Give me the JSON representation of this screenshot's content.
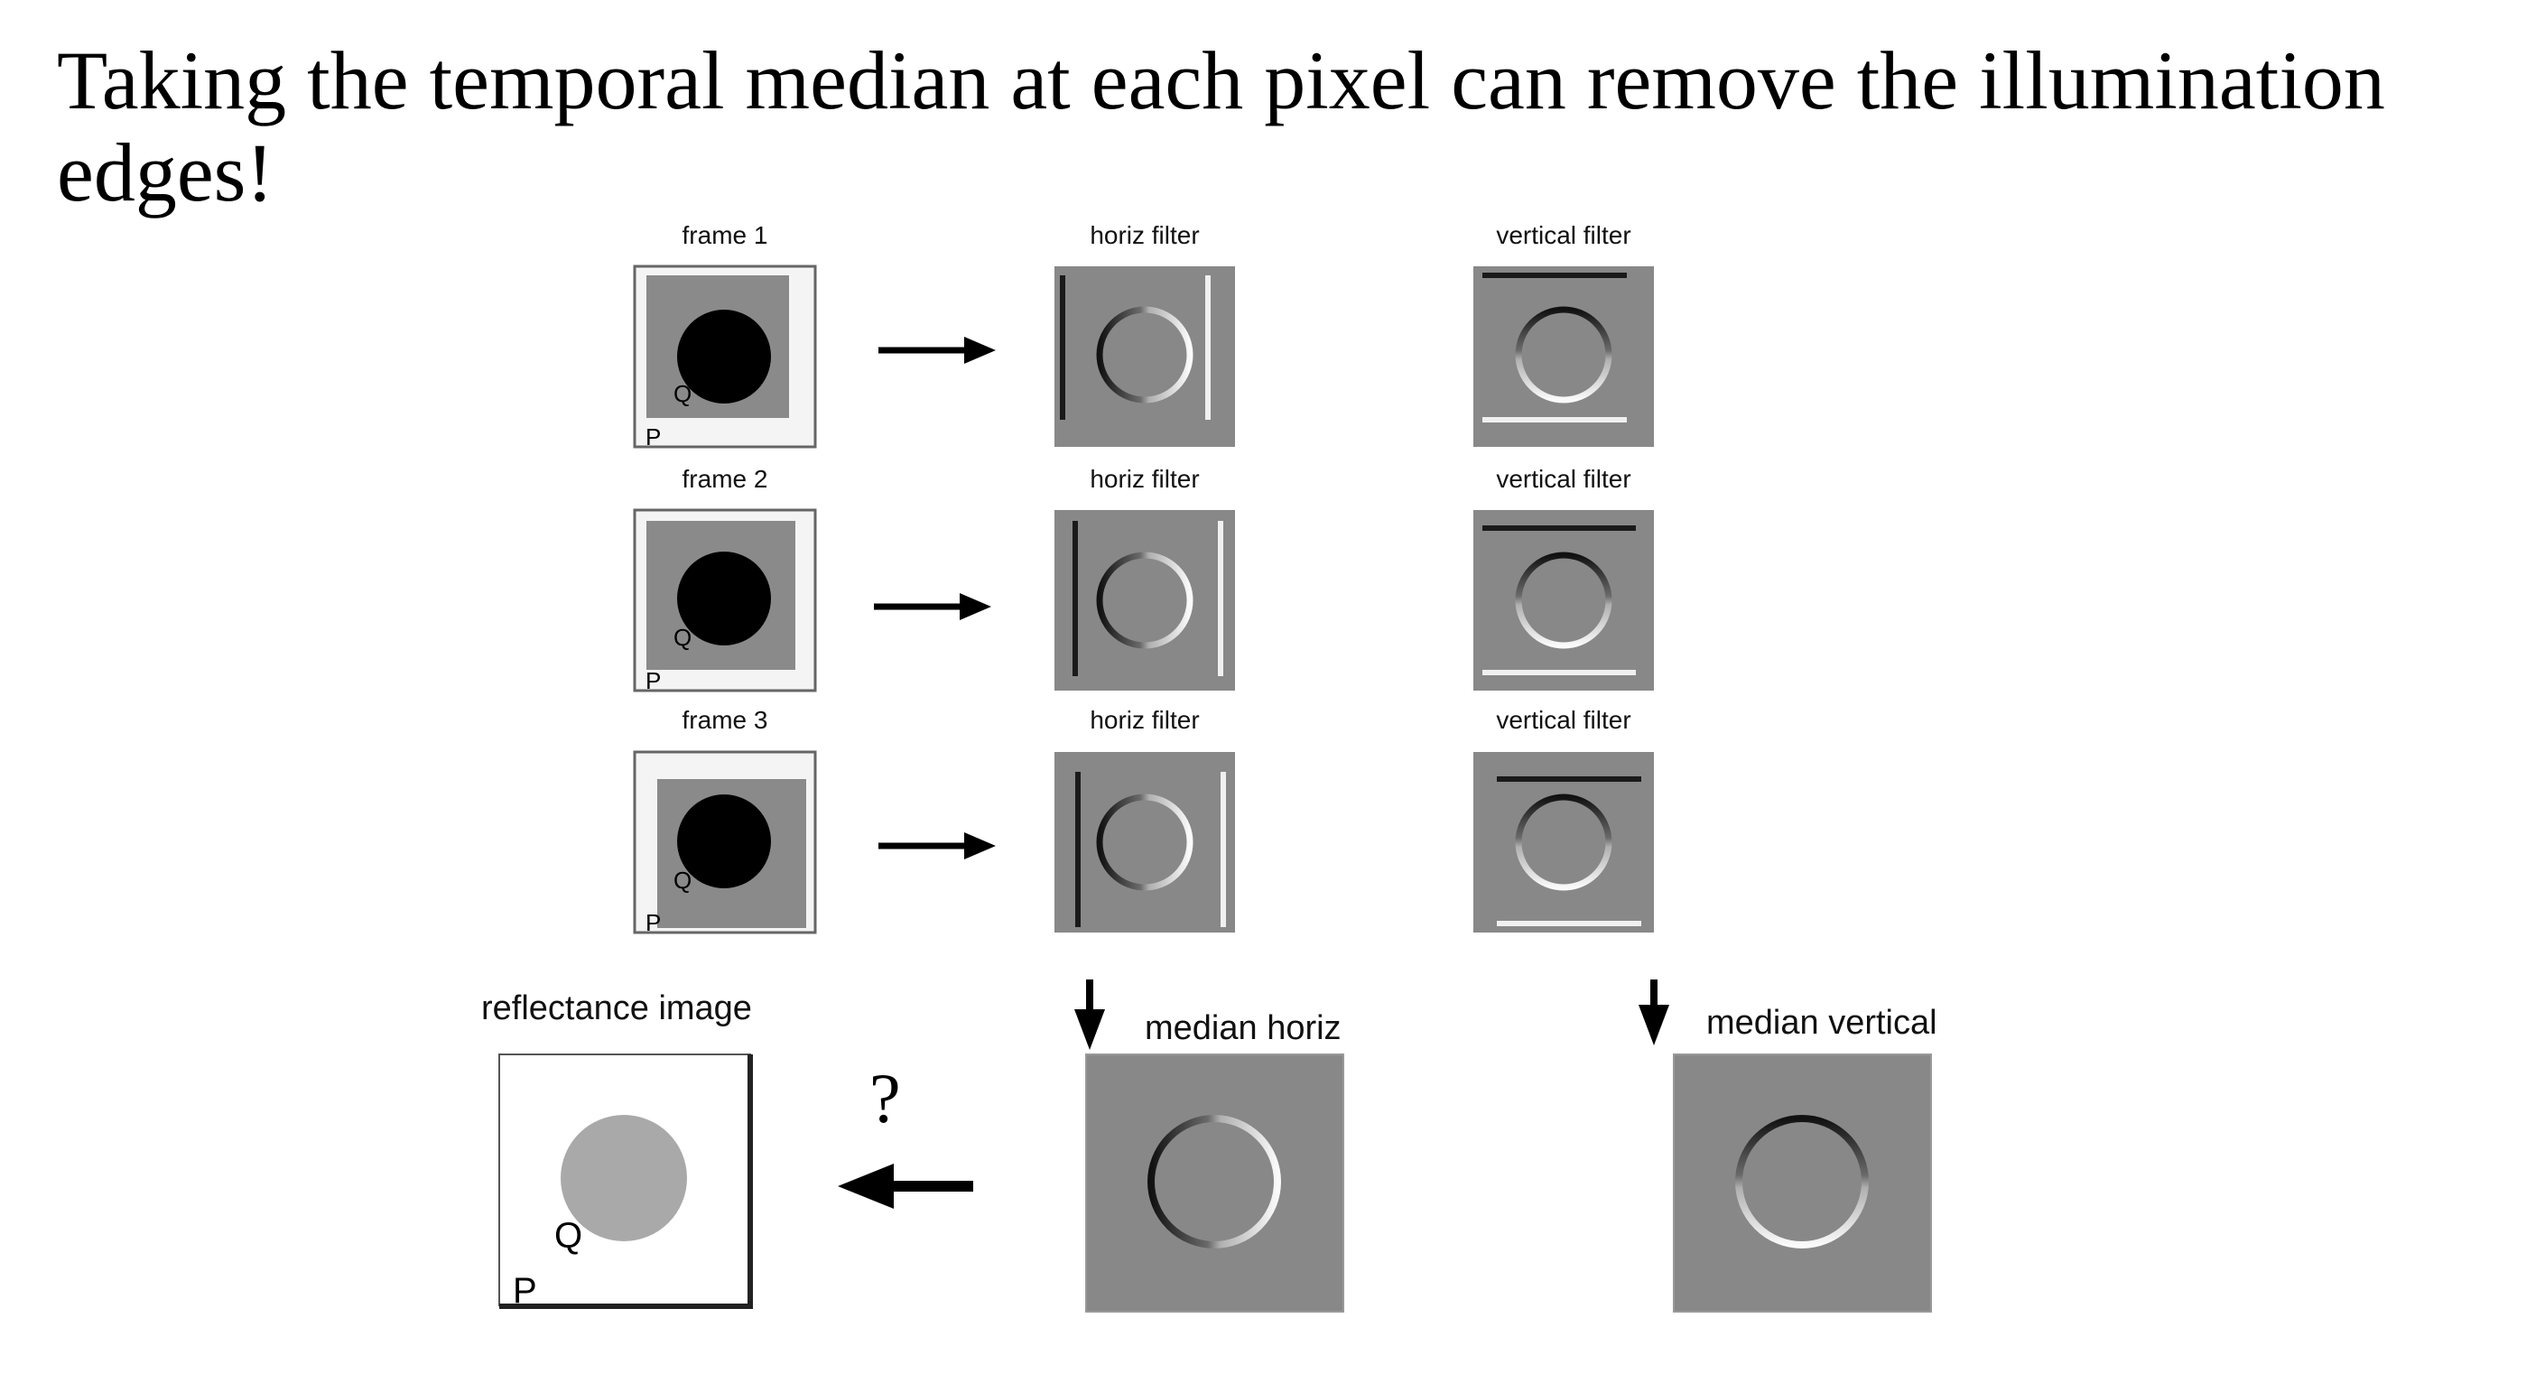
{
  "title": "Taking the temporal median at each pixel can remove the illumination edges!",
  "rows": [
    {
      "frame_label": "frame 1",
      "horiz_label": "horiz filter",
      "vert_label": "vertical filter"
    },
    {
      "frame_label": "frame 2",
      "horiz_label": "horiz filter",
      "vert_label": "vertical filter"
    },
    {
      "frame_label": "frame 3",
      "horiz_label": "horiz filter",
      "vert_label": "vertical filter"
    }
  ],
  "point_labels": {
    "p": "P",
    "q": "Q"
  },
  "bottom": {
    "reflectance_label": "reflectance image",
    "median_horiz_label": "median horiz",
    "median_vertical_label": "median vertical",
    "question": "?"
  },
  "colors": {
    "filter_gray": "#888888",
    "frame_gray": "#8a8a8a",
    "frame_bg": "#f4f4f4",
    "reflectance_disk": "#a9a9a9",
    "ink": "#000000"
  }
}
